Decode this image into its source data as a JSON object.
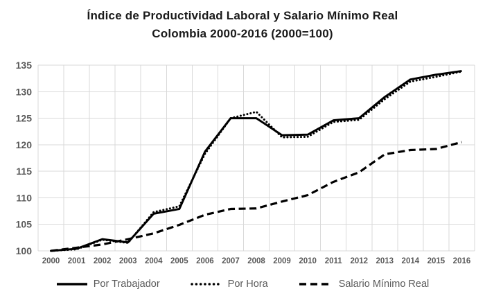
{
  "title": {
    "line1": "Índice de Productividad Laboral y Salario Mínimo Real",
    "line2": "Colombia 2000-2016 (2000=100)"
  },
  "colors": {
    "line": "#000000",
    "grid": "#d9d9d9",
    "axis_text": "#595959",
    "title_text": "#1a1a1a",
    "background": "#ffffff"
  },
  "chart_data": {
    "type": "line",
    "title": "Índice de Productividad Laboral y Salario Mínimo Real Colombia 2000-2016 (2000=100)",
    "xlabel": "",
    "ylabel": "",
    "ylim": [
      100,
      135
    ],
    "ytick_step": 5,
    "grid": true,
    "legend_position": "bottom",
    "categories": [
      2000,
      2001,
      2002,
      2003,
      2004,
      2005,
      2006,
      2007,
      2008,
      2009,
      2010,
      2011,
      2012,
      2013,
      2014,
      2015,
      2016
    ],
    "series": [
      {
        "name": "Por Trabajador",
        "style": "solid",
        "values": [
          100,
          100.4,
          102.2,
          101.6,
          107.0,
          107.9,
          118.7,
          125.0,
          125.0,
          121.8,
          121.9,
          124.6,
          125.0,
          129.0,
          132.3,
          133.2,
          133.9
        ]
      },
      {
        "name": "Por Hora",
        "style": "dotted",
        "values": [
          100,
          100.3,
          102.1,
          101.5,
          107.3,
          108.4,
          118.3,
          125.0,
          126.2,
          121.4,
          121.5,
          124.3,
          124.7,
          128.6,
          131.9,
          132.8,
          133.8
        ]
      },
      {
        "name": "Salario Mínimo Real",
        "style": "dashed",
        "values": [
          100,
          100.6,
          101.2,
          102.2,
          103.3,
          104.9,
          106.8,
          107.9,
          108.0,
          109.3,
          110.5,
          113.0,
          114.8,
          118.2,
          119.0,
          119.2,
          120.5
        ]
      }
    ]
  }
}
